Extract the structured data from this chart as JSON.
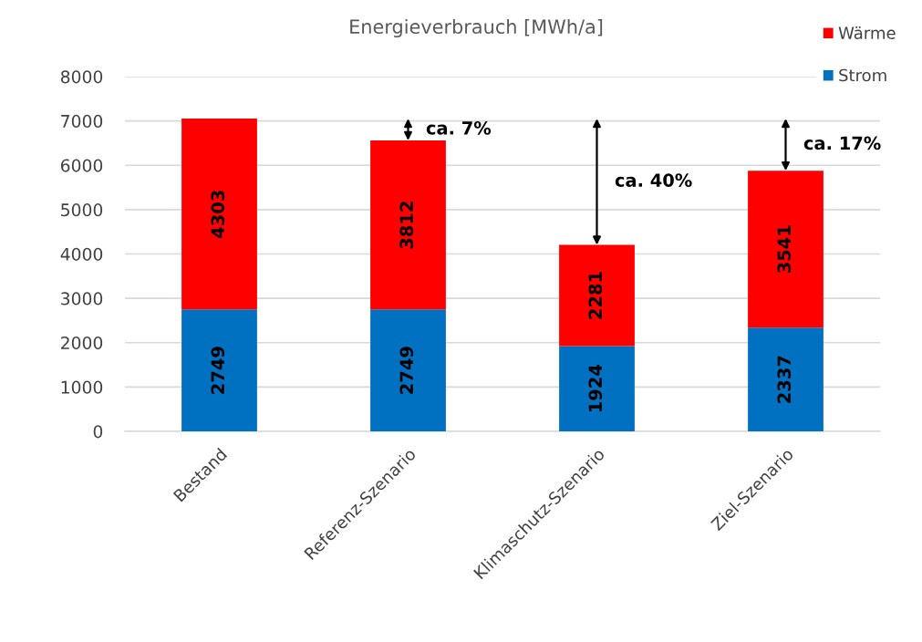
{
  "chart_data": {
    "type": "bar",
    "title": "Energieverbrauch [MWh/a]",
    "categories": [
      "Bestand",
      "Referenz-Szenario",
      "Klimaschutz-Szenario",
      "Ziel-Szenario"
    ],
    "stacked": true,
    "series": [
      {
        "name": "Strom",
        "color": "#0070c0",
        "values": [
          2749,
          2749,
          1924,
          2337
        ]
      },
      {
        "name": "Wärme",
        "color": "#ff0000",
        "values": [
          4303,
          3812,
          2281,
          3541
        ]
      }
    ],
    "ylim": [
      0,
      8000
    ],
    "yticks": [
      0,
      1000,
      2000,
      3000,
      4000,
      5000,
      6000,
      7000,
      8000
    ],
    "grid": "y",
    "legend": "top right",
    "data_labels": true,
    "annotations": [
      "ca. 7%",
      "ca. 40%",
      "ca. 17%"
    ]
  }
}
